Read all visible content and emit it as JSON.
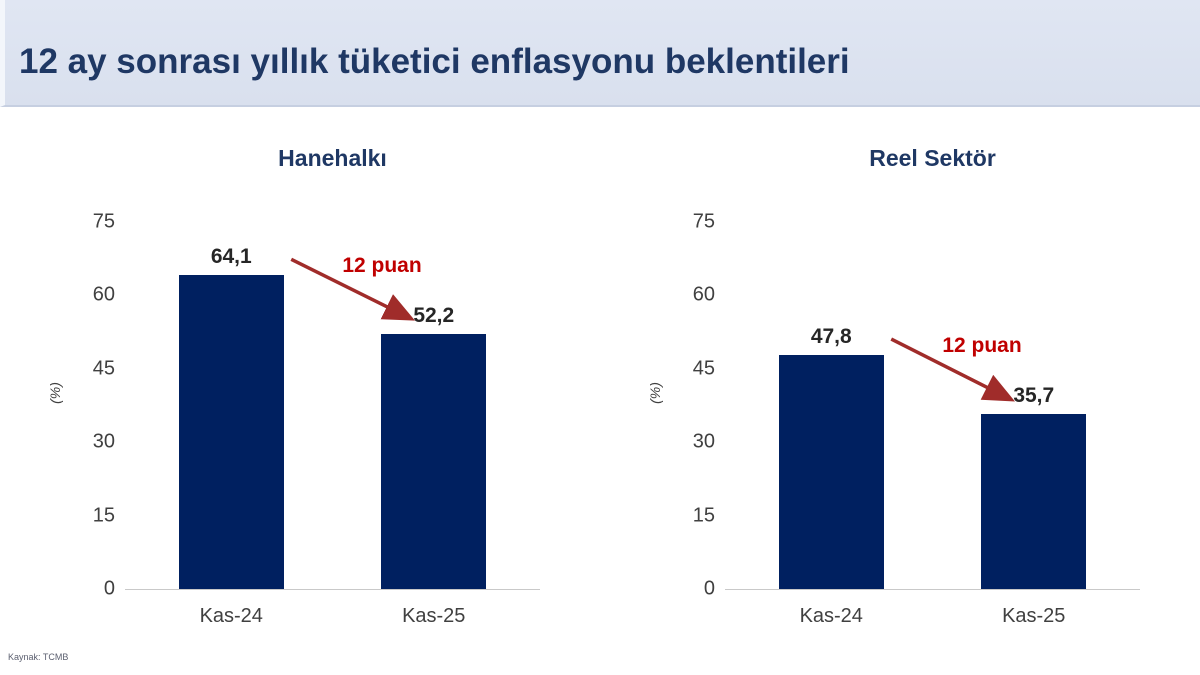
{
  "header": {
    "title": "12 ay sonrası yıllık tüketici enflasyonu beklentileri"
  },
  "footer": {
    "source": "Kaynak: TCMB"
  },
  "colors": {
    "header_bg": "#dce3f0",
    "title_text": "#1f3864",
    "bar": "#002060",
    "annotation_text": "#c00000",
    "arrow": "#a02c2a",
    "axis_text": "#404040",
    "baseline": "#c9c9c9",
    "value_label": "#262626"
  },
  "chart_data": [
    {
      "type": "bar",
      "title": "Hanehalkı",
      "categories": [
        "Kas-24",
        "Kas-25"
      ],
      "values": [
        64.1,
        52.2
      ],
      "value_labels": [
        "64,1",
        "52,2"
      ],
      "annotation": "12 puan",
      "xlabel": "",
      "ylabel": "(%)",
      "ylim": [
        0,
        75
      ],
      "yticks": [
        0,
        15,
        30,
        45,
        60,
        75
      ],
      "grid": false,
      "legend": false
    },
    {
      "type": "bar",
      "title": "Reel Sektör",
      "categories": [
        "Kas-24",
        "Kas-25"
      ],
      "values": [
        47.8,
        35.7
      ],
      "value_labels": [
        "47,8",
        "35,7"
      ],
      "annotation": "12 puan",
      "xlabel": "",
      "ylabel": "(%)",
      "ylim": [
        0,
        75
      ],
      "yticks": [
        0,
        15,
        30,
        45,
        60,
        75
      ],
      "grid": false,
      "legend": false
    }
  ]
}
